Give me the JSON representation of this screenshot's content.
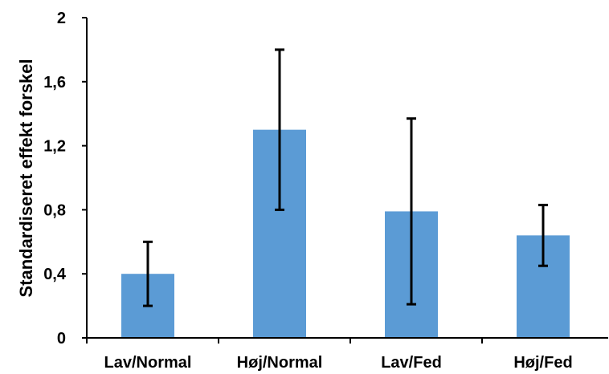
{
  "chart_data": {
    "type": "bar",
    "title": "",
    "xlabel": "",
    "ylabel": "Standardiseret effekt forskel",
    "categories": [
      "Lav/Normal",
      "Høj/Normal",
      "Lav/Fed",
      "Høj/Fed"
    ],
    "values": [
      0.4,
      1.3,
      0.79,
      0.64
    ],
    "error_bars": {
      "lower": [
        0.2,
        0.8,
        0.21,
        0.45
      ],
      "upper": [
        0.6,
        1.8,
        1.37,
        0.83
      ]
    },
    "ylim": [
      0,
      2
    ],
    "yticks": [
      0,
      0.4,
      0.8,
      1.2,
      1.6,
      2
    ],
    "ytick_labels": [
      "0",
      "0,4",
      "0,8",
      "1,2",
      "1,6",
      "2"
    ],
    "grid": false,
    "legend": "none",
    "bar_color": "#5b9bd5",
    "error_color": "#000000",
    "axis_color": "#000000"
  }
}
